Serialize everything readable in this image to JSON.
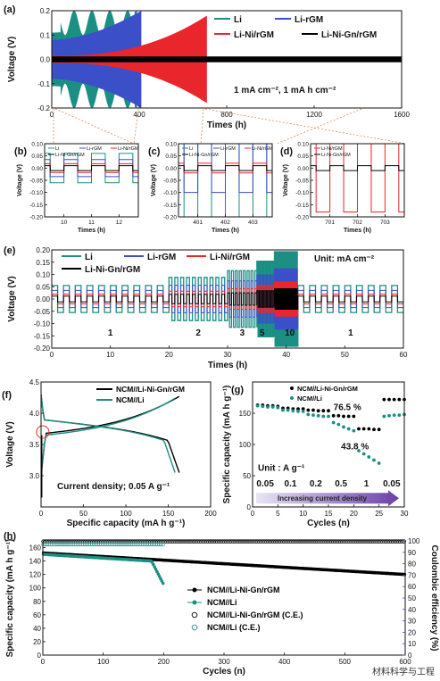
{
  "watermark": "材料科学与工程",
  "chart_data": [
    {
      "panel": "(a)",
      "type": "line",
      "xlabel": "Times (h)",
      "ylabel": "Voltage (V)",
      "xlim": [
        0,
        1600
      ],
      "ylim": [
        -0.2,
        0.2
      ],
      "xticks": [
        "0",
        "400",
        "800",
        "1200",
        "1600"
      ],
      "yticks": [
        "-0.2",
        "-0.1",
        "0.0",
        "0.1",
        "0.2"
      ],
      "annotation": "1 mA cm⁻², 1 mA h cm⁻²",
      "legend_position": "top-right",
      "series": [
        {
          "name": "Li",
          "color": "#1b8f84",
          "amp_start": 0.11,
          "amp_end": 0.2,
          "t_fail": 390
        },
        {
          "name": "Li-rGM",
          "color": "#3a4fc8",
          "amp_start": 0.08,
          "amp_end": 0.2,
          "t_fail": 410
        },
        {
          "name": "Li-Ni/rGM",
          "color": "#e8262b",
          "amp_start": 0.015,
          "amp_end": 0.18,
          "t_fail": 710
        },
        {
          "name": "Li-Ni-Gn/rGM",
          "color": "#000000",
          "amp_start": 0.012,
          "amp_end": 0.012,
          "t_fail": 1600
        }
      ]
    },
    {
      "panel": "(b)",
      "type": "line",
      "xlabel": "Times (h)",
      "ylabel": "Voltage (V)",
      "xlim": [
        9.3,
        12.7
      ],
      "ylim": [
        -0.2,
        0.1
      ],
      "xticks": [
        "10",
        "11",
        "12"
      ],
      "yticks": [
        "-0.20",
        "-0.15",
        "-0.10",
        "-0.05",
        "0.00",
        "0.05",
        "0.10"
      ],
      "legend": [
        "Li",
        "Li-rGM",
        "Li-Ni/rGM",
        "Li-Ni-Gn/rGM"
      ],
      "amplitudes": [
        0.06,
        0.035,
        0.018,
        0.01
      ]
    },
    {
      "panel": "(c)",
      "type": "line",
      "xlabel": "Times (h)",
      "ylabel": "Voltage (V)",
      "xlim": [
        400.3,
        403.7
      ],
      "ylim": [
        -0.2,
        0.1
      ],
      "xticks": [
        "401",
        "402",
        "403"
      ],
      "yticks": [
        "-0.20",
        "-0.15",
        "-0.10",
        "-0.05",
        "0.00",
        "0.05",
        "0.10"
      ],
      "legend": [
        "Li",
        "Li-rGM",
        "Li-Ni/rGM",
        "Li-Ni-Gn/rGM"
      ],
      "amplitudes": [
        0.2,
        0.1,
        0.02,
        0.01
      ]
    },
    {
      "panel": "(d)",
      "type": "line",
      "xlabel": "Times (h)",
      "ylabel": "Voltage (V)",
      "xlim": [
        700.3,
        703.7
      ],
      "ylim": [
        -0.2,
        0.1
      ],
      "xticks": [
        "701",
        "702",
        "703"
      ],
      "yticks": [
        "-0.20",
        "-0.15",
        "-0.10",
        "-0.05",
        "0.00",
        "0.05",
        "0.10"
      ],
      "legend": [
        "Li-Ni/rGM",
        "Li-Ni-Gn/rGM"
      ],
      "amplitudes": [
        0.18,
        0.01
      ]
    },
    {
      "panel": "(e)",
      "type": "line",
      "xlabel": "Times (h)",
      "ylabel": "Voltage (V)",
      "xlim": [
        0,
        60
      ],
      "ylim": [
        -0.2,
        0.2
      ],
      "xticks": [
        "0",
        "10",
        "20",
        "30",
        "40",
        "50",
        "60"
      ],
      "yticks": [
        "-0.20",
        "-0.15",
        "-0.10",
        "-0.05",
        "0.00",
        "0.05",
        "0.10",
        "0.15",
        "0.20"
      ],
      "legend": [
        "Li",
        "Li-rGM",
        "Li-Ni/rGM",
        "Li-Ni-Gn/rGM"
      ],
      "unit_label": "Unit: mA cm⁻²",
      "rate_segments": [
        {
          "label": "1",
          "t_start": 0,
          "t_end": 20
        },
        {
          "label": "2",
          "t_start": 20,
          "t_end": 30
        },
        {
          "label": "3",
          "t_start": 30,
          "t_end": 35
        },
        {
          "label": "5",
          "t_start": 35,
          "t_end": 38
        },
        {
          "label": "10",
          "t_start": 38,
          "t_end": 42
        },
        {
          "label": "1",
          "t_start": 42,
          "t_end": 60
        }
      ]
    },
    {
      "panel": "(f)",
      "type": "line",
      "xlabel": "Specific capacity (mA h g⁻¹)",
      "ylabel": "Voltage (V)",
      "xlim": [
        0,
        200
      ],
      "ylim": [
        2.5,
        4.5
      ],
      "xticks": [
        "0",
        "50",
        "100",
        "150",
        "200"
      ],
      "yticks": [
        "3.0",
        "3.5",
        "4.0",
        "4.5"
      ],
      "annotation": "Current density; 0.05 A g⁻¹",
      "series": [
        {
          "name": "NCM//Li-Ni-Gn/rGM",
          "color": "#000000",
          "capacity": 163
        },
        {
          "name": "NCM//Li",
          "color": "#1b8f84",
          "capacity": 158
        }
      ]
    },
    {
      "panel": "(g)",
      "type": "scatter",
      "xlabel": "Cycles (n)",
      "ylabel": "Specific capacity (mA h g⁻¹)",
      "xlim": [
        0,
        30
      ],
      "ylim": [
        0,
        200
      ],
      "xticks": [
        "0",
        "5",
        "10",
        "15",
        "20",
        "25",
        "30"
      ],
      "yticks": [
        "0",
        "50",
        "100",
        "150"
      ],
      "unit_label": "Unit : A g⁻¹",
      "rate_labels": [
        "0.05",
        "0.1",
        "0.2",
        "0.5",
        "1",
        "0.05"
      ],
      "arrow_label": "Increasing current density",
      "retention_labels": [
        "76.5 %",
        "43.8 %"
      ],
      "series": [
        {
          "name": "NCM//Li-Ni-Gn/rGM",
          "color": "#000000",
          "values": [
            163,
            163,
            162,
            162,
            161,
            158,
            158,
            157,
            157,
            157,
            155,
            155,
            154,
            154,
            154,
            146,
            146,
            145,
            145,
            145,
            125,
            125,
            125,
            124,
            124,
            172,
            172,
            172,
            172,
            172
          ]
        },
        {
          "name": "NCM//Li",
          "color": "#1b8f84",
          "values": [
            162,
            161,
            160,
            160,
            159,
            155,
            155,
            154,
            153,
            153,
            148,
            147,
            146,
            145,
            145,
            135,
            132,
            128,
            125,
            122,
            90,
            85,
            80,
            75,
            70,
            145,
            146,
            147,
            147,
            148
          ]
        }
      ]
    },
    {
      "panel": "(h)",
      "type": "scatter",
      "xlabel": "Cycles (n)",
      "ylabel": "Specific capacity (mA h g⁻¹)",
      "y2label": "Coulombic efficiency (%)",
      "xlim": [
        0,
        600
      ],
      "ylim": [
        0,
        170
      ],
      "y2lim": [
        0,
        100
      ],
      "xticks": [
        "0",
        "100",
        "200",
        "300",
        "400",
        "500",
        "600"
      ],
      "yticks": [
        "0",
        "20",
        "40",
        "60",
        "80",
        "100",
        "120",
        "140",
        "160"
      ],
      "y2ticks": [
        "0",
        "10",
        "20",
        "30",
        "40",
        "50",
        "60",
        "70",
        "80",
        "90",
        "100"
      ],
      "series": [
        {
          "name": "NCM//Li-Ni-Gn/rGM",
          "color": "#000000",
          "capacity_start": 152,
          "capacity_end": 120,
          "cycles": 600
        },
        {
          "name": "NCM//Li",
          "color": "#1b8f84",
          "capacity_start": 150,
          "capacity_drop_cycle": 180,
          "capacity_end": 105,
          "cycles": 200
        },
        {
          "name": "NCM//Li-Ni-Gn/rGM (C.E.)",
          "color": "#000000",
          "ce": 99.5,
          "cycles": 600
        },
        {
          "name": "NCM//Li (C.E.)",
          "color": "#1b8f84",
          "ce": 97,
          "cycles": 200
        }
      ]
    }
  ]
}
